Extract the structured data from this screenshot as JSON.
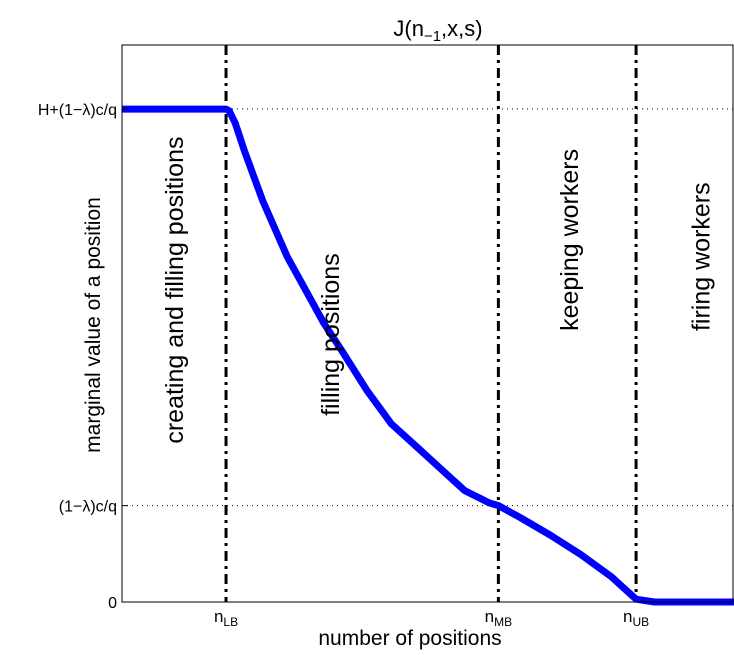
{
  "chart_data": {
    "type": "line",
    "title_parts": {
      "base": "J(n",
      "sub": "−1",
      "rest": ",x,s)"
    },
    "xlabel": "number of positions",
    "ylabel": "marginal value of a position",
    "xlim": [
      0,
      10
    ],
    "ylim": [
      0,
      10
    ],
    "grid": "dotted horizontal at y ticks",
    "x_ticks": [
      {
        "value": 1.7,
        "base": "n",
        "sub": "LB"
      },
      {
        "value": 6.15,
        "base": "n",
        "sub": "MB"
      },
      {
        "value": 8.4,
        "base": "n",
        "sub": "UB"
      }
    ],
    "y_ticks": [
      {
        "value": 0,
        "label": "0"
      },
      {
        "value": 1.73,
        "label": "(1−λ)c/q"
      },
      {
        "value": 8.85,
        "label": "H+(1−λ)c/q"
      }
    ],
    "series": [
      {
        "color": "#0000ff",
        "x": [
          0,
          1.7,
          1.75,
          1.85,
          2.0,
          2.3,
          2.7,
          3.0,
          3.3,
          3.6,
          4.0,
          4.4,
          4.8,
          5.2,
          5.6,
          6.0,
          6.15,
          6.5,
          7.0,
          7.5,
          8.0,
          8.2,
          8.4,
          8.7,
          10
        ],
        "y": [
          8.85,
          8.85,
          8.82,
          8.6,
          8.1,
          7.2,
          6.2,
          5.6,
          5.0,
          4.5,
          3.8,
          3.2,
          2.8,
          2.4,
          2.0,
          1.78,
          1.73,
          1.52,
          1.2,
          0.85,
          0.45,
          0.25,
          0.05,
          0.0,
          0.0
        ]
      }
    ],
    "vlines": [
      1.7,
      6.15,
      8.4
    ],
    "regions": [
      {
        "label": "creating and filling positions",
        "x": 0.85,
        "y": 5.6
      },
      {
        "label": "filling positions",
        "x": 3.4,
        "y": 4.8
      },
      {
        "label": "keeping workers",
        "x": 7.3,
        "y": 6.5
      },
      {
        "label": "firing workers",
        "x": 9.45,
        "y": 6.2
      }
    ]
  }
}
